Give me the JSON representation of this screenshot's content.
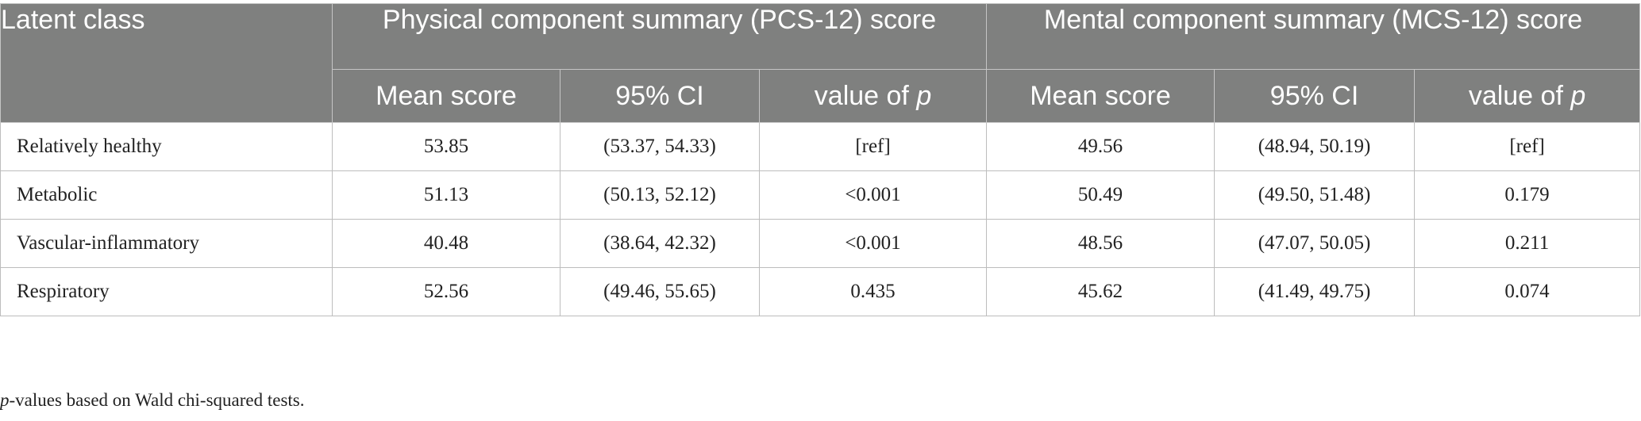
{
  "table": {
    "header_row1": {
      "latent_class": "Latent class",
      "pcs_group": "Physical component summary (PCS-12) score",
      "mcs_group": "Mental component summary (MCS-12) score"
    },
    "header_row2": {
      "mean_score": "Mean score",
      "ci": "95% CI",
      "p_prefix": "value of ",
      "p_symbol": "p"
    },
    "rows": [
      {
        "label": "Relatively healthy",
        "pcs_mean": "53.85",
        "pcs_ci": "(53.37, 54.33)",
        "pcs_p": "[ref]",
        "mcs_mean": "49.56",
        "mcs_ci": "(48.94, 50.19)",
        "mcs_p": "[ref]"
      },
      {
        "label": "Metabolic",
        "pcs_mean": "51.13",
        "pcs_ci": "(50.13, 52.12)",
        "pcs_p": "<0.001",
        "mcs_mean": "50.49",
        "mcs_ci": "(49.50, 51.48)",
        "mcs_p": "0.179"
      },
      {
        "label": "Vascular-inflammatory",
        "pcs_mean": "40.48",
        "pcs_ci": "(38.64, 42.32)",
        "pcs_p": "<0.001",
        "mcs_mean": "48.56",
        "mcs_ci": "(47.07, 50.05)",
        "mcs_p": "0.211"
      },
      {
        "label": "Respiratory",
        "pcs_mean": "52.56",
        "pcs_ci": "(49.46, 55.65)",
        "pcs_p": "0.435",
        "mcs_mean": "45.62",
        "mcs_ci": "(41.49, 49.75)",
        "mcs_p": "0.074"
      }
    ]
  },
  "footnote": {
    "symbol": "p",
    "text": "-values based on Wald chi-squared tests."
  },
  "colors": {
    "header_bg": "#7f807f",
    "header_text": "#ffffff",
    "border": "#bdbdbd"
  }
}
